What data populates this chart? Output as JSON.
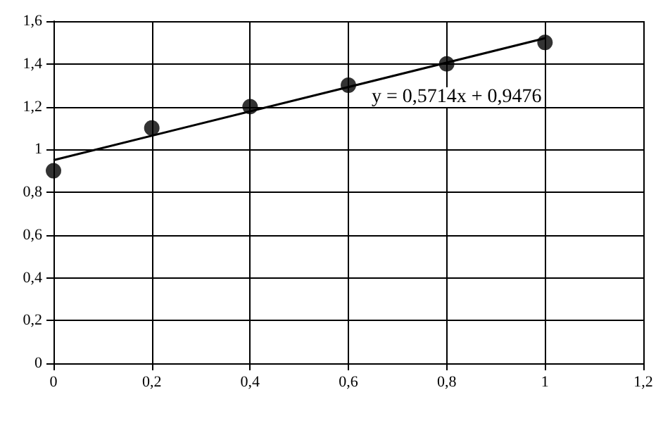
{
  "chart_data": {
    "type": "scatter",
    "series": [
      {
        "color": "#000000",
        "marker": "circle",
        "x": [
          0,
          0.2,
          0.4,
          0.6,
          0.8,
          1
        ],
        "values": [
          0.9,
          1.1,
          1.2,
          1.3,
          1.4,
          1.5
        ]
      },
      {
        "type": "line",
        "color": "#000000",
        "marker": "none",
        "line_style": "solid",
        "x": [
          0,
          1
        ],
        "values": [
          0.95,
          1.52
        ]
      }
    ],
    "xlim": [
      0,
      1.2
    ],
    "xticks": [
      0,
      {
        "value": 0.2,
        "label": "0,2"
      },
      {
        "value": 0.4,
        "label": "0,4"
      },
      {
        "value": 0.6,
        "label": "0,6"
      },
      {
        "value": 0.8,
        "label": "0,8"
      },
      1,
      {
        "value": 1.2,
        "label": "1,2"
      }
    ],
    "ylim": [
      0,
      1.6
    ],
    "yticks": [
      0,
      {
        "value": 0.2,
        "label": "0,2"
      },
      {
        "value": 0.4,
        "label": "0,4"
      },
      {
        "value": 0.6,
        "label": "0,6"
      },
      {
        "value": 0.8,
        "label": "0,8"
      },
      1,
      {
        "value": 1.2,
        "label": "1,2"
      },
      {
        "value": 1.4,
        "label": "1,4"
      },
      {
        "value": 1.6,
        "label": "1,6"
      }
    ],
    "grid": true,
    "annotations": [
      "y = 0,5714x + 0,9476"
    ]
  }
}
